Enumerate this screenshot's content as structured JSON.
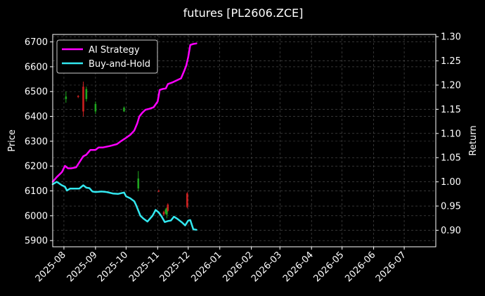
{
  "chart_data": {
    "type": "candlestick+line",
    "title": "futures [PL2606.ZCE]",
    "ylabel": "Price",
    "y2label": "Return",
    "ylim": [
      5875,
      6730
    ],
    "y2lim": [
      0.8658,
      1.3046
    ],
    "yticks": [
      5900,
      6000,
      6100,
      6200,
      6300,
      6400,
      6500,
      6600,
      6700
    ],
    "y2ticks": [
      "0.90",
      "0.95",
      "1.00",
      "1.05",
      "1.10",
      "1.15",
      "1.20",
      "1.25",
      "1.30"
    ],
    "xticks": [
      "2025-08",
      "2025-09",
      "2025-10",
      "2025-11",
      "2025-12",
      "2026-01",
      "2026-02",
      "2026-03",
      "2026-04",
      "2026-05",
      "2026-06",
      "2026-07"
    ],
    "xlim": [
      "2025-07-21",
      "2026-08-01"
    ],
    "grid": true,
    "legend": {
      "position": "top-left"
    },
    "colors": {
      "ai_strategy": "#ff00ff",
      "buy_and_hold": "#33e8f0",
      "up": "#1fa61f",
      "down": "#cc1f1f",
      "grid": "#555555",
      "background": "#000000"
    },
    "candles": [
      {
        "date": "2025-08-03",
        "open": 6470,
        "close": 6480,
        "high": 6500,
        "low": 6455
      },
      {
        "date": "2025-08-15",
        "open": 6482,
        "close": 6478,
        "high": 6486,
        "low": 6474
      },
      {
        "date": "2025-08-20",
        "open": 6520,
        "close": 6420,
        "high": 6540,
        "low": 6400
      },
      {
        "date": "2025-08-23",
        "open": 6470,
        "close": 6510,
        "high": 6520,
        "low": 6460
      },
      {
        "date": "2025-09-01",
        "open": 6420,
        "close": 6450,
        "high": 6460,
        "low": 6410
      },
      {
        "date": "2025-09-29",
        "open": 6420,
        "close": 6435,
        "high": 6440,
        "low": 6418
      },
      {
        "date": "2025-10-13",
        "open": 6110,
        "close": 6150,
        "high": 6180,
        "low": 6100
      },
      {
        "date": "2025-11-02",
        "open": 6100,
        "close": 6098,
        "high": 6105,
        "low": 6095
      },
      {
        "date": "2025-11-07",
        "open": 6015,
        "close": 6005,
        "high": 6020,
        "low": 6000
      },
      {
        "date": "2025-11-09",
        "open": 6010,
        "close": 6025,
        "high": 6030,
        "low": 6005
      },
      {
        "date": "2025-11-10",
        "open": 6005,
        "close": 6030,
        "high": 6035,
        "low": 5990
      },
      {
        "date": "2025-11-11",
        "open": 6045,
        "close": 6020,
        "high": 6050,
        "low": 6015
      },
      {
        "date": "2025-11-30",
        "open": 6090,
        "close": 6035,
        "high": 6095,
        "low": 6030
      }
    ],
    "series": [
      {
        "name": "AI Strategy",
        "axis": "right",
        "points": [
          [
            "2025-07-21",
            1.0
          ],
          [
            "2025-07-25",
            1.01
          ],
          [
            "2025-07-30",
            1.02
          ],
          [
            "2025-08-02",
            1.033
          ],
          [
            "2025-08-05",
            1.028
          ],
          [
            "2025-08-08",
            1.028
          ],
          [
            "2025-08-13",
            1.03
          ],
          [
            "2025-08-17",
            1.043
          ],
          [
            "2025-08-20",
            1.053
          ],
          [
            "2025-08-23",
            1.056
          ],
          [
            "2025-08-27",
            1.066
          ],
          [
            "2025-09-01",
            1.066
          ],
          [
            "2025-09-04",
            1.071
          ],
          [
            "2025-09-08",
            1.071
          ],
          [
            "2025-09-15",
            1.074
          ],
          [
            "2025-09-22",
            1.078
          ],
          [
            "2025-09-26",
            1.084
          ],
          [
            "2025-10-01",
            1.091
          ],
          [
            "2025-10-05",
            1.097
          ],
          [
            "2025-10-09",
            1.106
          ],
          [
            "2025-10-12",
            1.121
          ],
          [
            "2025-10-14",
            1.135
          ],
          [
            "2025-10-17",
            1.143
          ],
          [
            "2025-10-20",
            1.149
          ],
          [
            "2025-10-24",
            1.151
          ],
          [
            "2025-10-28",
            1.154
          ],
          [
            "2025-11-01",
            1.166
          ],
          [
            "2025-11-03",
            1.19
          ],
          [
            "2025-11-06",
            1.192
          ],
          [
            "2025-11-09",
            1.193
          ],
          [
            "2025-11-11",
            1.202
          ],
          [
            "2025-11-16",
            1.206
          ],
          [
            "2025-11-24",
            1.214
          ],
          [
            "2025-11-27",
            1.229
          ],
          [
            "2025-11-29",
            1.24
          ],
          [
            "2025-12-01",
            1.258
          ],
          [
            "2025-12-03",
            1.283
          ],
          [
            "2025-12-06",
            1.285
          ],
          [
            "2025-12-09",
            1.286
          ]
        ]
      },
      {
        "name": "Buy-and-Hold",
        "axis": "right",
        "points": [
          [
            "2025-07-21",
            0.995
          ],
          [
            "2025-07-25",
            1.0
          ],
          [
            "2025-07-30",
            0.993
          ],
          [
            "2025-08-02",
            0.99
          ],
          [
            "2025-08-04",
            0.982
          ],
          [
            "2025-08-07",
            0.986
          ],
          [
            "2025-08-10",
            0.986
          ],
          [
            "2025-08-16",
            0.986
          ],
          [
            "2025-08-20",
            0.993
          ],
          [
            "2025-08-23",
            0.988
          ],
          [
            "2025-08-26",
            0.987
          ],
          [
            "2025-08-29",
            0.98
          ],
          [
            "2025-09-01",
            0.979
          ],
          [
            "2025-09-07",
            0.98
          ],
          [
            "2025-09-12",
            0.979
          ],
          [
            "2025-09-18",
            0.976
          ],
          [
            "2025-09-23",
            0.975
          ],
          [
            "2025-09-29",
            0.978
          ],
          [
            "2025-10-01",
            0.97
          ],
          [
            "2025-10-05",
            0.966
          ],
          [
            "2025-10-09",
            0.96
          ],
          [
            "2025-10-11",
            0.951
          ],
          [
            "2025-10-15",
            0.93
          ],
          [
            "2025-10-18",
            0.924
          ],
          [
            "2025-10-22",
            0.918
          ],
          [
            "2025-10-27",
            0.93
          ],
          [
            "2025-10-30",
            0.942
          ],
          [
            "2025-11-02",
            0.937
          ],
          [
            "2025-11-05",
            0.928
          ],
          [
            "2025-11-08",
            0.917
          ],
          [
            "2025-11-11",
            0.919
          ],
          [
            "2025-11-14",
            0.92
          ],
          [
            "2025-11-17",
            0.928
          ],
          [
            "2025-11-20",
            0.924
          ],
          [
            "2025-11-25",
            0.916
          ],
          [
            "2025-11-28",
            0.91
          ],
          [
            "2025-12-01",
            0.92
          ],
          [
            "2025-12-03",
            0.921
          ],
          [
            "2025-12-06",
            0.902
          ],
          [
            "2025-12-09",
            0.901
          ]
        ]
      }
    ]
  }
}
